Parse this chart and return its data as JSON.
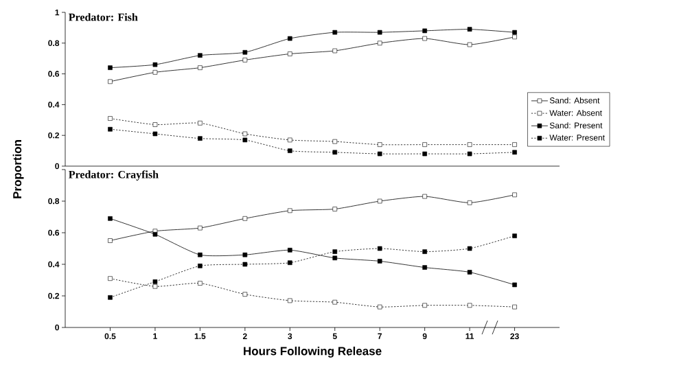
{
  "chart_data": [
    {
      "type": "line",
      "title": "Predator: Fish",
      "ylabel": "Proportion",
      "categories": [
        "0.5",
        "1",
        "1.5",
        "2",
        "3",
        "5",
        "7",
        "9",
        "11",
        "23"
      ],
      "ylim": [
        0,
        1
      ],
      "yticks": [
        0,
        0.2,
        0.4,
        0.6,
        0.8,
        1
      ],
      "tick_labels": "y",
      "legend": "right",
      "marker": "square",
      "series": [
        {
          "name": "Sand: Absent",
          "color": "#000000",
          "colors": [
            "#ffffff",
            "#ffffff",
            "#ffffff",
            "#ffffff",
            "#ffffff",
            "#ffffff",
            "#ffffff",
            "#ffffff",
            "#ffffff",
            "#ffffff"
          ],
          "line_style": "solid",
          "values": [
            0.55,
            0.61,
            0.64,
            0.69,
            0.73,
            0.75,
            0.8,
            0.83,
            0.79,
            0.84
          ]
        },
        {
          "name": "Water: Absent",
          "color": "#000000",
          "colors": [
            "#ffffff",
            "#ffffff",
            "#ffffff",
            "#ffffff",
            "#ffffff",
            "#ffffff",
            "#ffffff",
            "#ffffff",
            "#ffffff",
            "#ffffff"
          ],
          "line_style": "dashed",
          "values": [
            0.31,
            0.27,
            0.28,
            0.21,
            0.17,
            0.16,
            0.14,
            0.14,
            0.14,
            0.14
          ]
        },
        {
          "name": "Sand: Present",
          "color": "#000000",
          "line_style": "solid",
          "values": [
            0.64,
            0.66,
            0.72,
            0.74,
            0.83,
            0.87,
            0.87,
            0.88,
            0.89,
            0.87
          ]
        },
        {
          "name": "Water: Present",
          "color": "#000000",
          "line_style": "dashed",
          "values": [
            0.24,
            0.21,
            0.18,
            0.17,
            0.1,
            0.09,
            0.08,
            0.08,
            0.08,
            0.09
          ]
        }
      ]
    },
    {
      "type": "line",
      "title": "Predator: Crayfish",
      "xlabel": "Hours Following Release",
      "categories": [
        "0.5",
        "1",
        "1.5",
        "2",
        "3",
        "5",
        "7",
        "9",
        "11",
        "23"
      ],
      "ylim": [
        0,
        1
      ],
      "yticks": [
        0,
        0.2,
        0.4,
        0.6,
        0.8,
        {
          "value": 1,
          "label": null
        }
      ],
      "marker": "square",
      "series": [
        {
          "color": "#000000",
          "colors": [
            "#ffffff",
            "#ffffff",
            "#ffffff",
            "#ffffff",
            "#ffffff",
            "#ffffff",
            "#ffffff",
            "#ffffff",
            "#ffffff",
            "#ffffff"
          ],
          "line_style": "solid",
          "values": [
            0.55,
            0.61,
            0.63,
            0.69,
            0.74,
            0.75,
            0.8,
            0.83,
            0.79,
            0.84
          ]
        },
        {
          "color": "#000000",
          "colors": [
            "#ffffff",
            "#ffffff",
            "#ffffff",
            "#ffffff",
            "#ffffff",
            "#ffffff",
            "#ffffff",
            "#ffffff",
            "#ffffff",
            "#ffffff"
          ],
          "line_style": "dashed",
          "values": [
            0.31,
            0.26,
            0.28,
            0.21,
            0.17,
            0.16,
            0.13,
            0.14,
            0.14,
            0.13
          ]
        },
        {
          "color": "#000000",
          "line_style": "solid",
          "values": [
            0.69,
            0.59,
            0.46,
            0.46,
            0.49,
            0.44,
            0.42,
            0.38,
            0.35,
            0.27
          ]
        },
        {
          "color": "#000000",
          "line_style": "dashed",
          "values": [
            0.19,
            0.29,
            0.39,
            0.4,
            0.41,
            0.48,
            0.5,
            0.48,
            0.5,
            0.58
          ]
        }
      ]
    }
  ]
}
